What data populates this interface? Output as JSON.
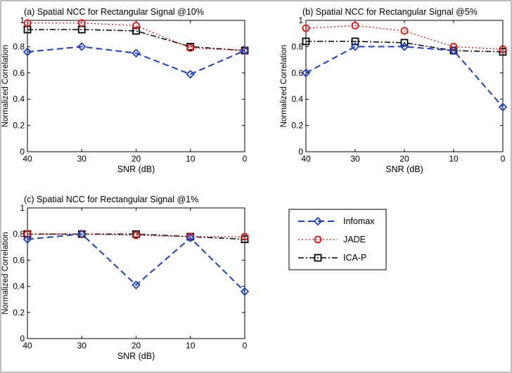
{
  "chart_data": [
    {
      "type": "line",
      "title": "(a) Spatial NCC for Rectangular Signal @10%",
      "xlabel": "SNR (dB)",
      "ylabel": "Normalized Correlation",
      "x": [
        40,
        30,
        20,
        10,
        0
      ],
      "x_reversed": true,
      "xlim": [
        40,
        0
      ],
      "ylim": [
        0,
        1
      ],
      "xticks": [
        "40",
        "30",
        "20",
        "10",
        "0"
      ],
      "yticks": [
        "0",
        "0.2",
        "0.4",
        "0.6",
        "0.8",
        "1"
      ],
      "grid": false,
      "series": [
        {
          "name": "Infomax",
          "values": [
            0.76,
            0.8,
            0.75,
            0.59,
            0.77
          ]
        },
        {
          "name": "JADE",
          "values": [
            0.98,
            0.98,
            0.96,
            0.79,
            0.77
          ]
        },
        {
          "name": "ICA-P",
          "values": [
            0.93,
            0.93,
            0.92,
            0.8,
            0.77
          ]
        }
      ]
    },
    {
      "type": "line",
      "title": "(b) Spatial NCC for Rectangular Signal @5%",
      "xlabel": "SNR (dB)",
      "ylabel": "Normalized Correlation",
      "x": [
        40,
        30,
        20,
        10,
        0
      ],
      "x_reversed": true,
      "xlim": [
        40,
        0
      ],
      "ylim": [
        0,
        1
      ],
      "xticks": [
        "40",
        "30",
        "20",
        "10",
        "0"
      ],
      "yticks": [
        "0",
        "0.2",
        "0.4",
        "0.6",
        "0.8",
        "1"
      ],
      "grid": false,
      "series": [
        {
          "name": "Infomax",
          "values": [
            0.6,
            0.8,
            0.8,
            0.77,
            0.34
          ]
        },
        {
          "name": "JADE",
          "values": [
            0.94,
            0.96,
            0.92,
            0.8,
            0.78
          ]
        },
        {
          "name": "ICA-P",
          "values": [
            0.84,
            0.84,
            0.83,
            0.77,
            0.76
          ]
        }
      ]
    },
    {
      "type": "line",
      "title": "(c) Spatial NCC for Rectangular Signal @1%",
      "xlabel": "SNR (dB)",
      "ylabel": "Normalized Correlation",
      "x": [
        40,
        30,
        20,
        10,
        0
      ],
      "x_reversed": true,
      "xlim": [
        40,
        0
      ],
      "ylim": [
        0,
        1
      ],
      "xticks": [
        "40",
        "30",
        "20",
        "10",
        "0"
      ],
      "yticks": [
        "0",
        "0.2",
        "0.4",
        "0.6",
        "0.8",
        "1"
      ],
      "grid": false,
      "series": [
        {
          "name": "Infomax",
          "values": [
            0.76,
            0.8,
            0.41,
            0.77,
            0.36
          ]
        },
        {
          "name": "JADE",
          "values": [
            0.8,
            0.8,
            0.79,
            0.78,
            0.78
          ]
        },
        {
          "name": "ICA-P",
          "values": [
            0.8,
            0.8,
            0.8,
            0.78,
            0.76
          ]
        }
      ]
    }
  ],
  "legend": {
    "placement": "lower-right",
    "entries": [
      {
        "label": "Infomax",
        "color": "#1c3fc4",
        "marker": "diamond",
        "dash": "long-dash"
      },
      {
        "label": "JADE",
        "color": "#e01010",
        "marker": "circle",
        "dash": "dotted"
      },
      {
        "label": "ICA-P",
        "color": "#000000",
        "marker": "square",
        "dash": "dash-dot"
      }
    ]
  }
}
